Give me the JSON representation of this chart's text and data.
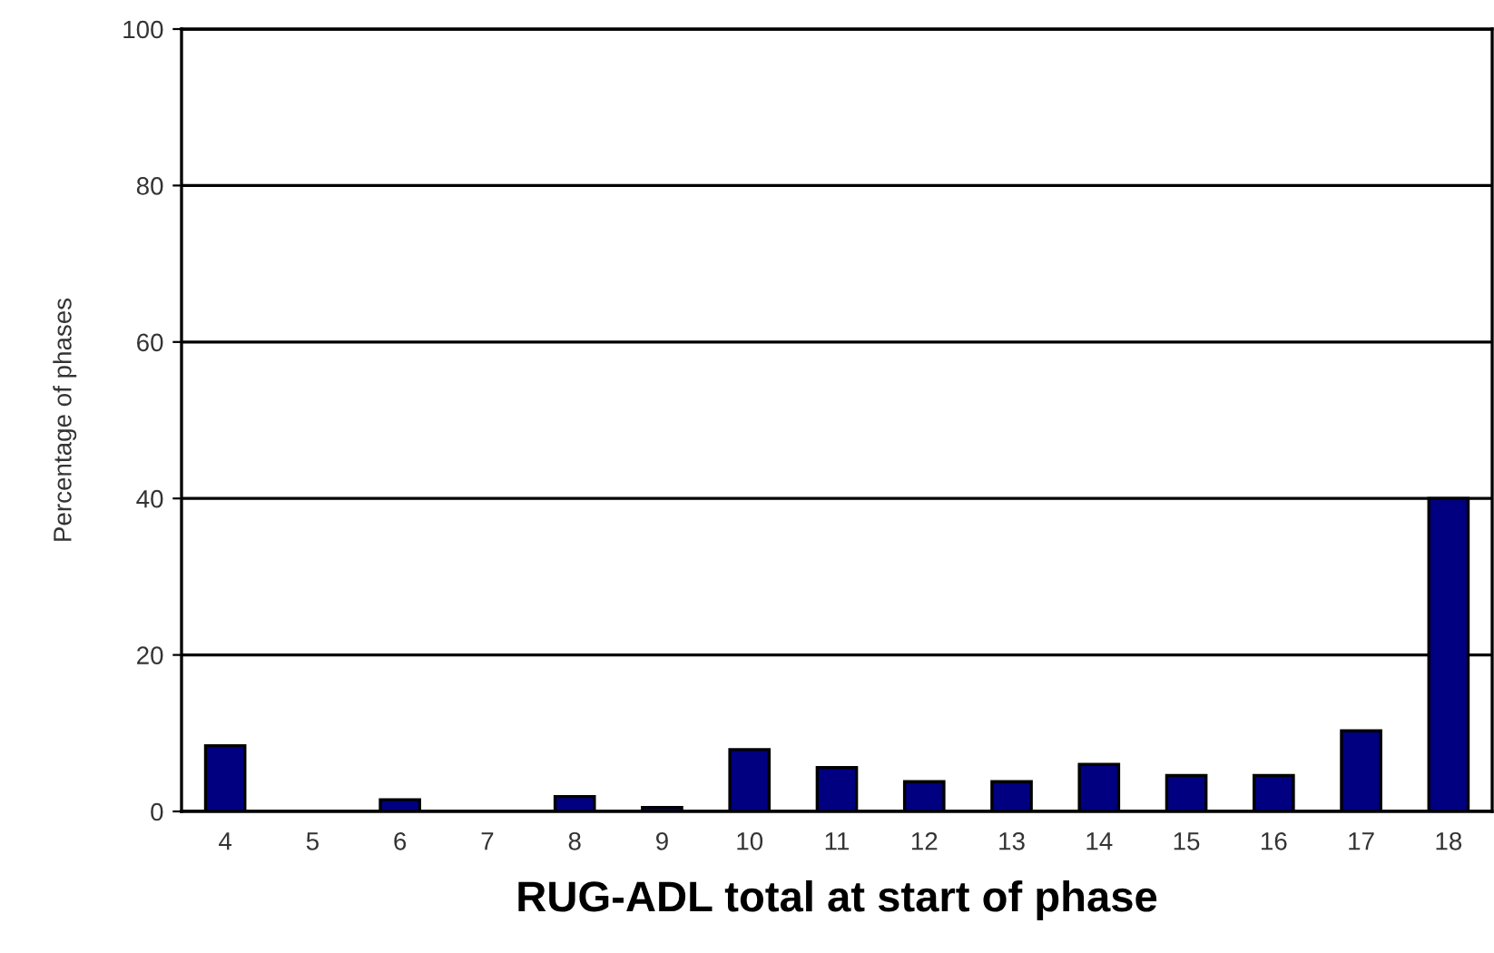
{
  "chart_data": {
    "type": "bar",
    "xlabel": "RUG-ADL total at start of phase",
    "ylabel": "Percentage of phases",
    "categories": [
      "4",
      "5",
      "6",
      "7",
      "8",
      "9",
      "10",
      "11",
      "12",
      "13",
      "14",
      "15",
      "16",
      "17",
      "18"
    ],
    "values": [
      8.4,
      0,
      1.5,
      0,
      1.9,
      0.5,
      7.9,
      5.6,
      3.8,
      3.8,
      6.0,
      4.6,
      4.6,
      10.3,
      40
    ],
    "color": "#000080",
    "ylim": [
      0,
      100
    ],
    "yticks": [
      0,
      20,
      40,
      60,
      80,
      100
    ],
    "grid": "y"
  }
}
